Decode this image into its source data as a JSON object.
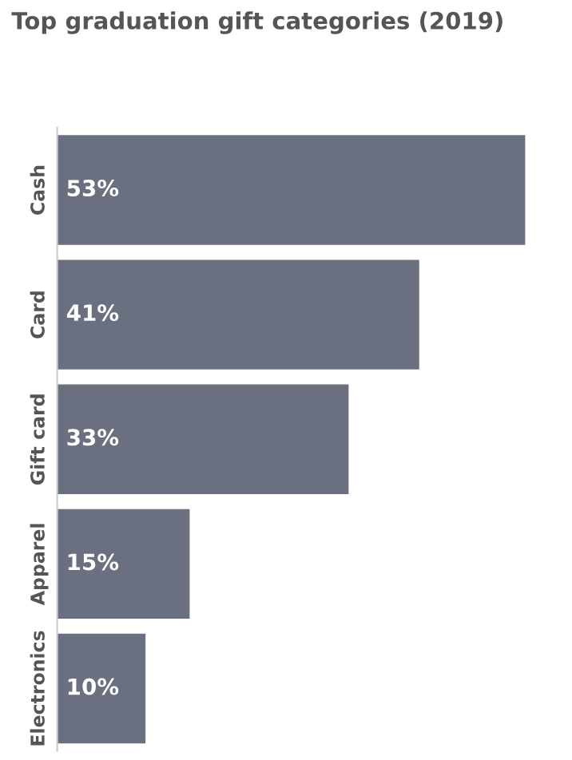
{
  "chart_data": {
    "type": "bar",
    "orientation": "horizontal",
    "title": "Top graduation gift categories (2019)",
    "categories": [
      "Cash",
      "Card",
      "Gift card",
      "Apparel",
      "Electronics"
    ],
    "values": [
      53,
      41,
      33,
      15,
      10
    ],
    "value_labels": [
      "53%",
      "41%",
      "33%",
      "15%",
      "10%"
    ],
    "color": "#6b7080",
    "grid": false,
    "legend": false
  }
}
